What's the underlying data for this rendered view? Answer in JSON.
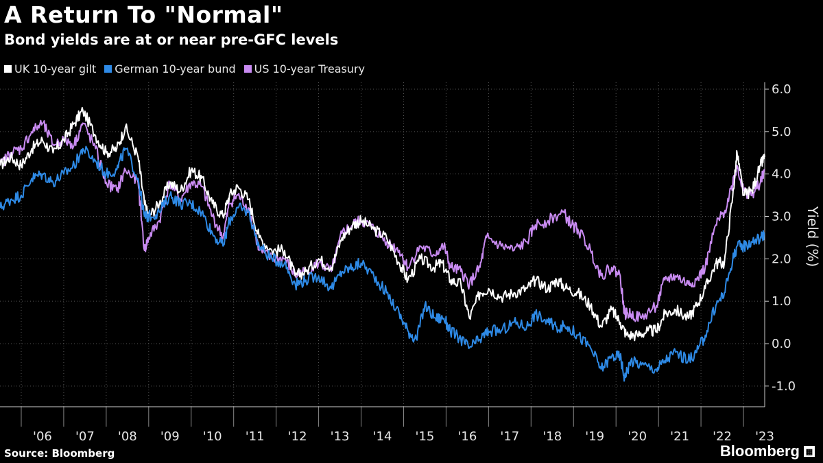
{
  "header": {
    "title": "A Return To \"Normal\"",
    "subtitle": "Bond yields are at or near pre-GFC levels"
  },
  "footer": {
    "source": "Source: Bloomberg",
    "brand": "Bloomberg"
  },
  "colors": {
    "background": "#000000",
    "uk": "#ffffff",
    "de": "#2e8ae6",
    "us": "#c98bf2",
    "grid": "#555555"
  },
  "chart_data": {
    "type": "line",
    "title": "A Return To \"Normal\"",
    "subtitle": "Bond yields are at or near pre-GFC levels",
    "ylabel": "Yield (%)",
    "xlabel": "",
    "ylim": [
      -1.5,
      6.2
    ],
    "xlim": [
      2005.5,
      2023.5
    ],
    "yticks": [
      6,
      5,
      4,
      3,
      2,
      1,
      0,
      -1
    ],
    "ytick_labels": [
      "6.0",
      "5.0",
      "4.0",
      "3.0",
      "2.0",
      "1.0",
      "0.0",
      "-1.0"
    ],
    "xtick_labels": [
      "'06",
      "'07",
      "'08",
      "'09",
      "'10",
      "'11",
      "'12",
      "'13",
      "'14",
      "'15",
      "'16",
      "'17",
      "'18",
      "'19",
      "'20",
      "'21",
      "'22",
      "'23"
    ],
    "legend_position": "top-left",
    "grid": true,
    "series": [
      {
        "name": "UK 10-year gilt",
        "color": "#ffffff",
        "points": [
          [
            2005.5,
            4.2
          ],
          [
            2005.75,
            4.4
          ],
          [
            2006,
            4.2
          ],
          [
            2006.25,
            4.6
          ],
          [
            2006.5,
            4.8
          ],
          [
            2006.75,
            4.5
          ],
          [
            2007,
            4.8
          ],
          [
            2007.25,
            5.2
          ],
          [
            2007.45,
            5.5
          ],
          [
            2007.75,
            4.9
          ],
          [
            2008,
            4.5
          ],
          [
            2008.25,
            4.6
          ],
          [
            2008.45,
            5.1
          ],
          [
            2008.75,
            4.4
          ],
          [
            2008.9,
            3.3
          ],
          [
            2009,
            3.0
          ],
          [
            2009.25,
            3.3
          ],
          [
            2009.5,
            3.8
          ],
          [
            2009.75,
            3.6
          ],
          [
            2010,
            4.1
          ],
          [
            2010.25,
            3.9
          ],
          [
            2010.5,
            3.3
          ],
          [
            2010.75,
            3.0
          ],
          [
            2010.9,
            3.5
          ],
          [
            2011.1,
            3.7
          ],
          [
            2011.35,
            3.4
          ],
          [
            2011.6,
            2.5
          ],
          [
            2011.9,
            2.2
          ],
          [
            2012.2,
            2.2
          ],
          [
            2012.45,
            1.6
          ],
          [
            2012.7,
            1.7
          ],
          [
            2013,
            2.0
          ],
          [
            2013.3,
            1.8
          ],
          [
            2013.55,
            2.5
          ],
          [
            2013.8,
            2.8
          ],
          [
            2014,
            2.9
          ],
          [
            2014.3,
            2.7
          ],
          [
            2014.6,
            2.5
          ],
          [
            2014.9,
            1.9
          ],
          [
            2015.1,
            1.5
          ],
          [
            2015.4,
            2.0
          ],
          [
            2015.7,
            1.8
          ],
          [
            2015.9,
            1.9
          ],
          [
            2016.1,
            1.5
          ],
          [
            2016.35,
            1.4
          ],
          [
            2016.55,
            0.6
          ],
          [
            2016.8,
            1.2
          ],
          [
            2017,
            1.3
          ],
          [
            2017.3,
            1.1
          ],
          [
            2017.6,
            1.2
          ],
          [
            2017.9,
            1.3
          ],
          [
            2018.1,
            1.5
          ],
          [
            2018.4,
            1.3
          ],
          [
            2018.6,
            1.5
          ],
          [
            2018.85,
            1.3
          ],
          [
            2019.1,
            1.2
          ],
          [
            2019.4,
            0.9
          ],
          [
            2019.65,
            0.4
          ],
          [
            2019.9,
            0.8
          ],
          [
            2020.1,
            0.5
          ],
          [
            2020.25,
            0.2
          ],
          [
            2020.5,
            0.2
          ],
          [
            2020.75,
            0.3
          ],
          [
            2020.95,
            0.3
          ],
          [
            2021.15,
            0.7
          ],
          [
            2021.4,
            0.8
          ],
          [
            2021.7,
            0.6
          ],
          [
            2021.9,
            0.9
          ],
          [
            2022.1,
            1.3
          ],
          [
            2022.35,
            1.9
          ],
          [
            2022.55,
            1.9
          ],
          [
            2022.75,
            3.5
          ],
          [
            2022.85,
            4.5
          ],
          [
            2023,
            3.5
          ],
          [
            2023.2,
            3.6
          ],
          [
            2023.4,
            4.2
          ],
          [
            2023.5,
            4.4
          ]
        ]
      },
      {
        "name": "German 10-year bund",
        "color": "#2e8ae6",
        "points": [
          [
            2005.5,
            3.2
          ],
          [
            2005.75,
            3.4
          ],
          [
            2006,
            3.5
          ],
          [
            2006.25,
            3.9
          ],
          [
            2006.5,
            4.0
          ],
          [
            2006.75,
            3.8
          ],
          [
            2007,
            4.0
          ],
          [
            2007.25,
            4.2
          ],
          [
            2007.45,
            4.6
          ],
          [
            2007.75,
            4.3
          ],
          [
            2008,
            4.0
          ],
          [
            2008.25,
            4.1
          ],
          [
            2008.45,
            4.6
          ],
          [
            2008.75,
            3.9
          ],
          [
            2008.9,
            3.0
          ],
          [
            2009,
            3.0
          ],
          [
            2009.25,
            3.1
          ],
          [
            2009.5,
            3.5
          ],
          [
            2009.75,
            3.3
          ],
          [
            2010,
            3.3
          ],
          [
            2010.25,
            3.1
          ],
          [
            2010.5,
            2.6
          ],
          [
            2010.75,
            2.3
          ],
          [
            2010.9,
            2.9
          ],
          [
            2011.1,
            3.2
          ],
          [
            2011.35,
            3.1
          ],
          [
            2011.6,
            2.3
          ],
          [
            2011.9,
            2.0
          ],
          [
            2012.2,
            1.9
          ],
          [
            2012.45,
            1.4
          ],
          [
            2012.7,
            1.5
          ],
          [
            2013,
            1.6
          ],
          [
            2013.3,
            1.3
          ],
          [
            2013.55,
            1.7
          ],
          [
            2013.8,
            1.8
          ],
          [
            2014,
            1.9
          ],
          [
            2014.3,
            1.6
          ],
          [
            2014.6,
            1.2
          ],
          [
            2014.9,
            0.7
          ],
          [
            2015.1,
            0.3
          ],
          [
            2015.3,
            0.1
          ],
          [
            2015.5,
            0.9
          ],
          [
            2015.75,
            0.6
          ],
          [
            2015.95,
            0.6
          ],
          [
            2016.1,
            0.3
          ],
          [
            2016.35,
            0.1
          ],
          [
            2016.55,
            -0.1
          ],
          [
            2016.8,
            0.1
          ],
          [
            2017,
            0.3
          ],
          [
            2017.3,
            0.3
          ],
          [
            2017.6,
            0.5
          ],
          [
            2017.9,
            0.4
          ],
          [
            2018.1,
            0.7
          ],
          [
            2018.4,
            0.5
          ],
          [
            2018.6,
            0.4
          ],
          [
            2018.85,
            0.4
          ],
          [
            2019.1,
            0.2
          ],
          [
            2019.4,
            -0.1
          ],
          [
            2019.65,
            -0.6
          ],
          [
            2019.9,
            -0.3
          ],
          [
            2020.1,
            -0.3
          ],
          [
            2020.2,
            -0.8
          ],
          [
            2020.35,
            -0.4
          ],
          [
            2020.6,
            -0.5
          ],
          [
            2020.95,
            -0.6
          ],
          [
            2021.15,
            -0.4
          ],
          [
            2021.4,
            -0.2
          ],
          [
            2021.7,
            -0.4
          ],
          [
            2021.9,
            -0.2
          ],
          [
            2022.1,
            0.2
          ],
          [
            2022.35,
            0.9
          ],
          [
            2022.55,
            1.2
          ],
          [
            2022.75,
            2.0
          ],
          [
            2022.85,
            2.3
          ],
          [
            2023,
            2.3
          ],
          [
            2023.2,
            2.4
          ],
          [
            2023.4,
            2.5
          ],
          [
            2023.5,
            2.6
          ]
        ]
      },
      {
        "name": "US 10-year Treasury",
        "color": "#c98bf2",
        "points": [
          [
            2005.5,
            4.2
          ],
          [
            2005.75,
            4.5
          ],
          [
            2006,
            4.6
          ],
          [
            2006.25,
            5.0
          ],
          [
            2006.5,
            5.2
          ],
          [
            2006.75,
            4.7
          ],
          [
            2007,
            4.8
          ],
          [
            2007.25,
            4.7
          ],
          [
            2007.45,
            5.2
          ],
          [
            2007.75,
            4.6
          ],
          [
            2008,
            3.8
          ],
          [
            2008.25,
            3.6
          ],
          [
            2008.45,
            4.1
          ],
          [
            2008.75,
            3.8
          ],
          [
            2008.9,
            2.2
          ],
          [
            2009,
            2.5
          ],
          [
            2009.25,
            2.9
          ],
          [
            2009.5,
            3.8
          ],
          [
            2009.75,
            3.4
          ],
          [
            2010,
            3.8
          ],
          [
            2010.25,
            3.7
          ],
          [
            2010.5,
            3.0
          ],
          [
            2010.75,
            2.5
          ],
          [
            2010.9,
            3.3
          ],
          [
            2011.1,
            3.5
          ],
          [
            2011.35,
            3.2
          ],
          [
            2011.6,
            2.2
          ],
          [
            2011.9,
            2.0
          ],
          [
            2012.2,
            2.0
          ],
          [
            2012.45,
            1.6
          ],
          [
            2012.7,
            1.7
          ],
          [
            2013,
            1.9
          ],
          [
            2013.3,
            1.7
          ],
          [
            2013.55,
            2.6
          ],
          [
            2013.8,
            2.8
          ],
          [
            2014,
            2.9
          ],
          [
            2014.3,
            2.7
          ],
          [
            2014.6,
            2.4
          ],
          [
            2014.9,
            2.2
          ],
          [
            2015.1,
            1.8
          ],
          [
            2015.4,
            2.3
          ],
          [
            2015.7,
            2.1
          ],
          [
            2015.95,
            2.3
          ],
          [
            2016.1,
            1.8
          ],
          [
            2016.35,
            1.7
          ],
          [
            2016.55,
            1.4
          ],
          [
            2016.8,
            1.8
          ],
          [
            2016.95,
            2.5
          ],
          [
            2017.3,
            2.3
          ],
          [
            2017.6,
            2.2
          ],
          [
            2017.9,
            2.4
          ],
          [
            2018.1,
            2.8
          ],
          [
            2018.4,
            2.9
          ],
          [
            2018.75,
            3.1
          ],
          [
            2018.95,
            2.8
          ],
          [
            2019.1,
            2.7
          ],
          [
            2019.4,
            2.2
          ],
          [
            2019.65,
            1.6
          ],
          [
            2019.9,
            1.8
          ],
          [
            2020.1,
            1.6
          ],
          [
            2020.2,
            0.7
          ],
          [
            2020.35,
            0.7
          ],
          [
            2020.6,
            0.6
          ],
          [
            2020.95,
            0.9
          ],
          [
            2021.15,
            1.5
          ],
          [
            2021.4,
            1.6
          ],
          [
            2021.7,
            1.4
          ],
          [
            2021.9,
            1.5
          ],
          [
            2022.1,
            1.8
          ],
          [
            2022.35,
            2.8
          ],
          [
            2022.55,
            3.1
          ],
          [
            2022.75,
            3.8
          ],
          [
            2022.85,
            4.2
          ],
          [
            2023,
            3.6
          ],
          [
            2023.2,
            3.5
          ],
          [
            2023.4,
            3.8
          ],
          [
            2023.5,
            4.1
          ]
        ]
      }
    ]
  }
}
